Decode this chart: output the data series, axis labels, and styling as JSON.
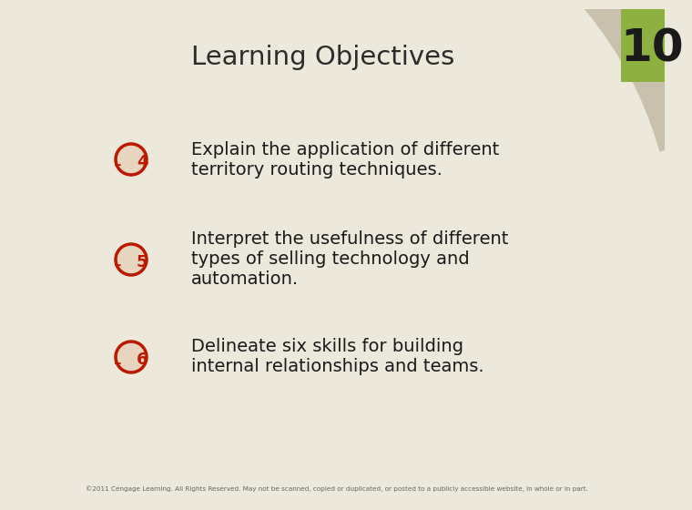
{
  "title": "Learning Objectives",
  "chapter_number": "10",
  "background_main": "#ede8dc",
  "background_tan": "#c9c0ad",
  "background_gold": "#d4a020",
  "background_green": "#8db040",
  "title_color": "#2c2c2c",
  "lo_color": "#bb1a00",
  "lo_circle_fill": "#e8d5c0",
  "text_color": "#1a1a1a",
  "items": [
    {
      "lo": "L",
      "o": "O",
      "number": "4",
      "text_lines": [
        "Explain the application of different",
        "territory routing techniques."
      ]
    },
    {
      "lo": "L",
      "o": "O",
      "number": "5",
      "text_lines": [
        "Interpret the usefulness of different",
        "types of selling technology and",
        "automation."
      ]
    },
    {
      "lo": "L",
      "o": "O",
      "number": "6",
      "text_lines": [
        "Delineate six skills for building",
        "internal relationships and teams."
      ]
    }
  ],
  "footer": "©2011 Cengage Learning. All Rights Reserved. May not be scanned, copied or duplicated, or posted to a publicly accessible website, in whole or in part.",
  "footer_color": "#666666"
}
